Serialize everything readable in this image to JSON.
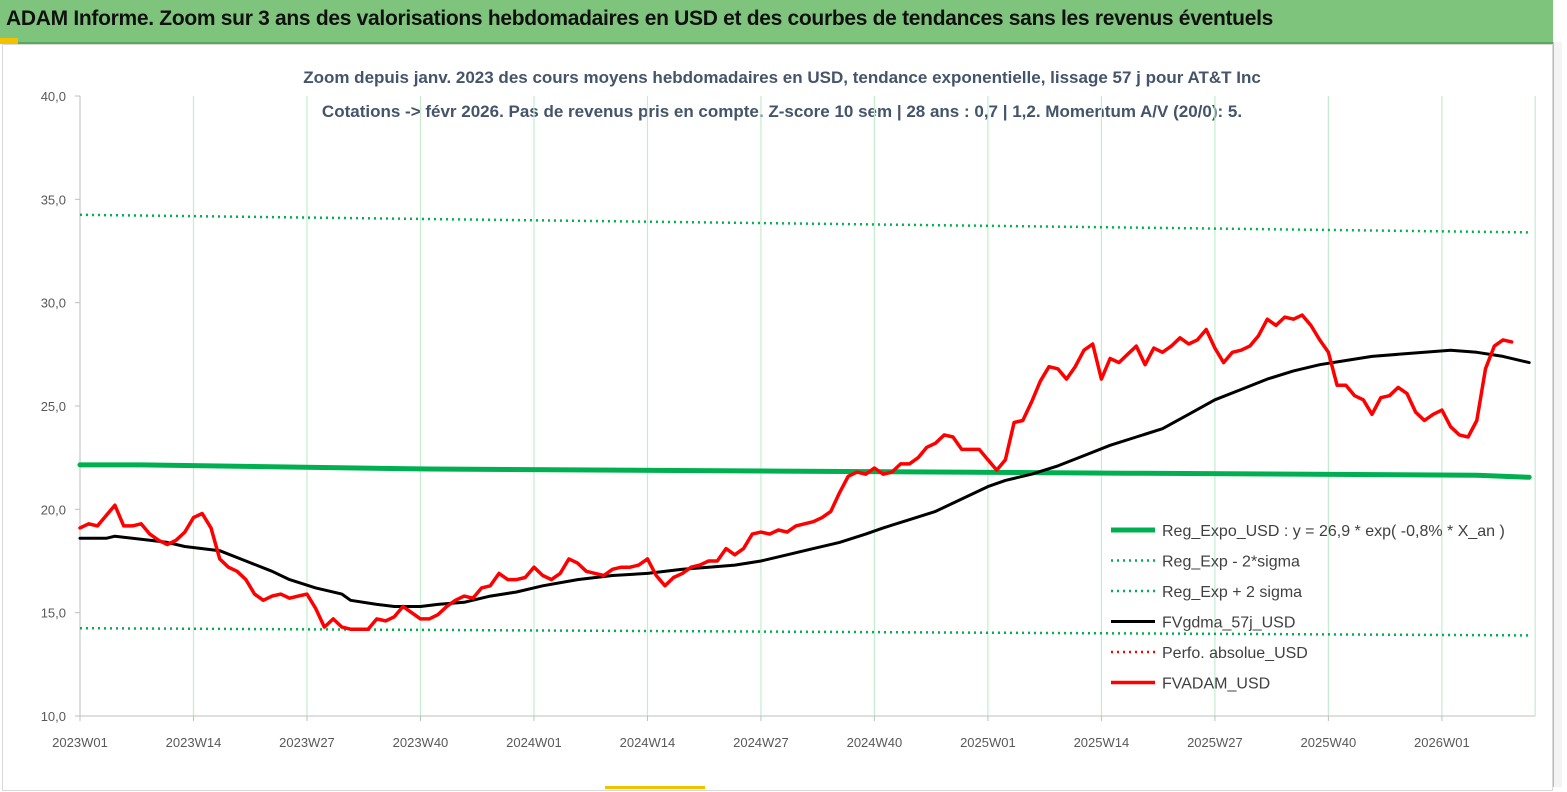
{
  "banner": {
    "title": "ADAM Informe. Zoom sur 3 ans des valorisations hebdomadaires en USD et des courbes de tendances sans les revenus éventuels"
  },
  "chart_data": {
    "type": "line",
    "title": "Zoom depuis janv. 2023 des cours moyens hebdomadaires en USD, tendance exponentielle, lissage 57 j pour AT&T Inc",
    "subtitle": "Cotations -> févr 2026. Pas de revenus pris en compte. Z-score 10 sem | 28 ans : 0,7 | 1,2. Momentum A/V (20/0): 5.",
    "xlabel": "",
    "ylabel": "",
    "ylim": [
      10,
      40
    ],
    "yticks": [
      "10,0",
      "15,0",
      "20,0",
      "25,0",
      "30,0",
      "35,0",
      "40,0"
    ],
    "xtick_labels": [
      "2023W01",
      "2023W14",
      "2023W27",
      "2023W40",
      "2024W01",
      "2024W14",
      "2024W27",
      "2024W40",
      "2025W01",
      "2025W14",
      "2025W27",
      "2025W40",
      "2026W01"
    ],
    "grid": "vertical",
    "legend_position": "bottom-right",
    "colors": {
      "green": "#00b050",
      "black": "#000000",
      "red": "#ff0000",
      "grid": "#c4eccf"
    },
    "series": [
      {
        "name": "Reg_Expo_USD : y = 26,9 * exp( -0,8% *  X_an )",
        "style": "solid-green",
        "values": [
          [
            0,
            22.15
          ],
          [
            7,
            22.15
          ],
          [
            40,
            21.95
          ],
          [
            80,
            21.85
          ],
          [
            120,
            21.75
          ],
          [
            160,
            21.65
          ],
          [
            166,
            21.55
          ]
        ]
      },
      {
        "name": "Reg_Exp - 2*sigma",
        "style": "dotted-green",
        "values": [
          [
            0,
            14.25
          ],
          [
            166,
            13.9
          ]
        ]
      },
      {
        "name": "Reg_Exp + 2 sigma",
        "style": "dotted-green",
        "values": [
          [
            0,
            34.25
          ],
          [
            166,
            33.4
          ]
        ]
      },
      {
        "name": "FVgdma_57j_USD",
        "style": "solid-black",
        "values": [
          [
            0,
            18.6
          ],
          [
            3,
            18.6
          ],
          [
            4,
            18.7
          ],
          [
            8,
            18.5
          ],
          [
            10,
            18.4
          ],
          [
            12,
            18.2
          ],
          [
            16,
            18.0
          ],
          [
            19,
            17.5
          ],
          [
            22,
            17.0
          ],
          [
            24,
            16.6
          ],
          [
            27,
            16.2
          ],
          [
            30,
            15.9
          ],
          [
            31,
            15.6
          ],
          [
            34,
            15.4
          ],
          [
            36,
            15.3
          ],
          [
            39,
            15.3
          ],
          [
            41,
            15.4
          ],
          [
            44,
            15.5
          ],
          [
            47,
            15.8
          ],
          [
            50,
            16.0
          ],
          [
            53,
            16.3
          ],
          [
            57,
            16.6
          ],
          [
            61,
            16.8
          ],
          [
            65,
            16.9
          ],
          [
            69,
            17.1
          ],
          [
            72,
            17.2
          ],
          [
            75,
            17.3
          ],
          [
            78,
            17.5
          ],
          [
            81,
            17.8
          ],
          [
            84,
            18.1
          ],
          [
            87,
            18.4
          ],
          [
            90,
            18.8
          ],
          [
            92,
            19.1
          ],
          [
            95,
            19.5
          ],
          [
            98,
            19.9
          ],
          [
            101,
            20.5
          ],
          [
            104,
            21.1
          ],
          [
            106,
            21.4
          ],
          [
            109,
            21.7
          ],
          [
            112,
            22.1
          ],
          [
            115,
            22.6
          ],
          [
            118,
            23.1
          ],
          [
            121,
            23.5
          ],
          [
            124,
            23.9
          ],
          [
            127,
            24.6
          ],
          [
            130,
            25.3
          ],
          [
            133,
            25.8
          ],
          [
            136,
            26.3
          ],
          [
            139,
            26.7
          ],
          [
            142,
            27.0
          ],
          [
            145,
            27.2
          ],
          [
            148,
            27.4
          ],
          [
            151,
            27.5
          ],
          [
            154,
            27.6
          ],
          [
            157,
            27.7
          ],
          [
            160,
            27.6
          ],
          [
            163,
            27.4
          ],
          [
            166,
            27.1
          ]
        ]
      },
      {
        "name": "Perfo. absolue_USD",
        "style": "dotted-red",
        "values": []
      },
      {
        "name": "FVADAM_USD",
        "style": "solid-red",
        "values": [
          [
            0,
            19.1
          ],
          [
            1,
            19.3
          ],
          [
            2,
            19.2
          ],
          [
            3,
            19.7
          ],
          [
            4,
            20.2
          ],
          [
            5,
            19.2
          ],
          [
            6,
            19.2
          ],
          [
            7,
            19.3
          ],
          [
            8,
            18.8
          ],
          [
            9,
            18.5
          ],
          [
            10,
            18.3
          ],
          [
            11,
            18.5
          ],
          [
            12,
            18.9
          ],
          [
            13,
            19.6
          ],
          [
            14,
            19.8
          ],
          [
            15,
            19.1
          ],
          [
            16,
            17.6
          ],
          [
            17,
            17.2
          ],
          [
            18,
            17.0
          ],
          [
            19,
            16.6
          ],
          [
            20,
            15.9
          ],
          [
            21,
            15.6
          ],
          [
            22,
            15.8
          ],
          [
            23,
            15.9
          ],
          [
            24,
            15.7
          ],
          [
            25,
            15.8
          ],
          [
            26,
            15.9
          ],
          [
            27,
            15.2
          ],
          [
            28,
            14.3
          ],
          [
            29,
            14.7
          ],
          [
            30,
            14.3
          ],
          [
            31,
            14.2
          ],
          [
            32,
            14.2
          ],
          [
            33,
            14.2
          ],
          [
            34,
            14.7
          ],
          [
            35,
            14.6
          ],
          [
            36,
            14.8
          ],
          [
            37,
            15.3
          ],
          [
            38,
            15.0
          ],
          [
            39,
            14.7
          ],
          [
            40,
            14.7
          ],
          [
            41,
            14.9
          ],
          [
            42,
            15.3
          ],
          [
            43,
            15.6
          ],
          [
            44,
            15.8
          ],
          [
            45,
            15.7
          ],
          [
            46,
            16.2
          ],
          [
            47,
            16.3
          ],
          [
            48,
            16.9
          ],
          [
            49,
            16.6
          ],
          [
            50,
            16.6
          ],
          [
            51,
            16.7
          ],
          [
            52,
            17.2
          ],
          [
            53,
            16.8
          ],
          [
            54,
            16.6
          ],
          [
            55,
            16.9
          ],
          [
            56,
            17.6
          ],
          [
            57,
            17.4
          ],
          [
            58,
            17.0
          ],
          [
            59,
            16.9
          ],
          [
            60,
            16.8
          ],
          [
            61,
            17.1
          ],
          [
            62,
            17.2
          ],
          [
            63,
            17.2
          ],
          [
            64,
            17.3
          ],
          [
            65,
            17.6
          ],
          [
            66,
            16.8
          ],
          [
            67,
            16.3
          ],
          [
            68,
            16.7
          ],
          [
            69,
            16.9
          ],
          [
            70,
            17.2
          ],
          [
            71,
            17.3
          ],
          [
            72,
            17.5
          ],
          [
            73,
            17.5
          ],
          [
            74,
            18.1
          ],
          [
            75,
            17.8
          ],
          [
            76,
            18.1
          ],
          [
            77,
            18.8
          ],
          [
            78,
            18.9
          ],
          [
            79,
            18.8
          ],
          [
            80,
            19.0
          ],
          [
            81,
            18.9
          ],
          [
            82,
            19.2
          ],
          [
            83,
            19.3
          ],
          [
            84,
            19.4
          ],
          [
            85,
            19.6
          ],
          [
            86,
            19.9
          ],
          [
            87,
            20.8
          ],
          [
            88,
            21.6
          ],
          [
            89,
            21.8
          ],
          [
            90,
            21.7
          ],
          [
            91,
            22.0
          ],
          [
            92,
            21.7
          ],
          [
            93,
            21.8
          ],
          [
            94,
            22.2
          ],
          [
            95,
            22.2
          ],
          [
            96,
            22.5
          ],
          [
            97,
            23.0
          ],
          [
            98,
            23.2
          ],
          [
            99,
            23.6
          ],
          [
            100,
            23.5
          ],
          [
            101,
            22.9
          ],
          [
            102,
            22.9
          ],
          [
            103,
            22.9
          ],
          [
            104,
            22.4
          ],
          [
            105,
            21.9
          ],
          [
            106,
            22.4
          ],
          [
            107,
            24.2
          ],
          [
            108,
            24.3
          ],
          [
            109,
            25.2
          ],
          [
            110,
            26.2
          ],
          [
            111,
            26.9
          ],
          [
            112,
            26.8
          ],
          [
            113,
            26.3
          ],
          [
            114,
            26.9
          ],
          [
            115,
            27.7
          ],
          [
            116,
            28.0
          ],
          [
            117,
            26.3
          ],
          [
            118,
            27.3
          ],
          [
            119,
            27.1
          ],
          [
            120,
            27.5
          ],
          [
            121,
            27.9
          ],
          [
            122,
            27.0
          ],
          [
            123,
            27.8
          ],
          [
            124,
            27.6
          ],
          [
            125,
            27.9
          ],
          [
            126,
            28.3
          ],
          [
            127,
            28.0
          ],
          [
            128,
            28.2
          ],
          [
            129,
            28.7
          ],
          [
            130,
            27.8
          ],
          [
            131,
            27.1
          ],
          [
            132,
            27.6
          ],
          [
            133,
            27.7
          ],
          [
            134,
            27.9
          ],
          [
            135,
            28.4
          ],
          [
            136,
            29.2
          ],
          [
            137,
            28.9
          ],
          [
            138,
            29.3
          ],
          [
            139,
            29.2
          ],
          [
            140,
            29.4
          ],
          [
            141,
            28.9
          ],
          [
            142,
            28.2
          ],
          [
            143,
            27.6
          ],
          [
            144,
            26.0
          ],
          [
            145,
            26.0
          ],
          [
            146,
            25.5
          ],
          [
            147,
            25.3
          ],
          [
            148,
            24.6
          ],
          [
            149,
            25.4
          ],
          [
            150,
            25.5
          ],
          [
            151,
            25.9
          ],
          [
            152,
            25.6
          ],
          [
            153,
            24.7
          ],
          [
            154,
            24.3
          ],
          [
            155,
            24.6
          ],
          [
            156,
            24.8
          ],
          [
            157,
            24.0
          ],
          [
            158,
            23.6
          ],
          [
            159,
            23.5
          ],
          [
            160,
            24.3
          ],
          [
            161,
            26.8
          ],
          [
            162,
            27.9
          ],
          [
            163,
            28.2
          ],
          [
            164,
            28.1
          ]
        ]
      }
    ]
  }
}
